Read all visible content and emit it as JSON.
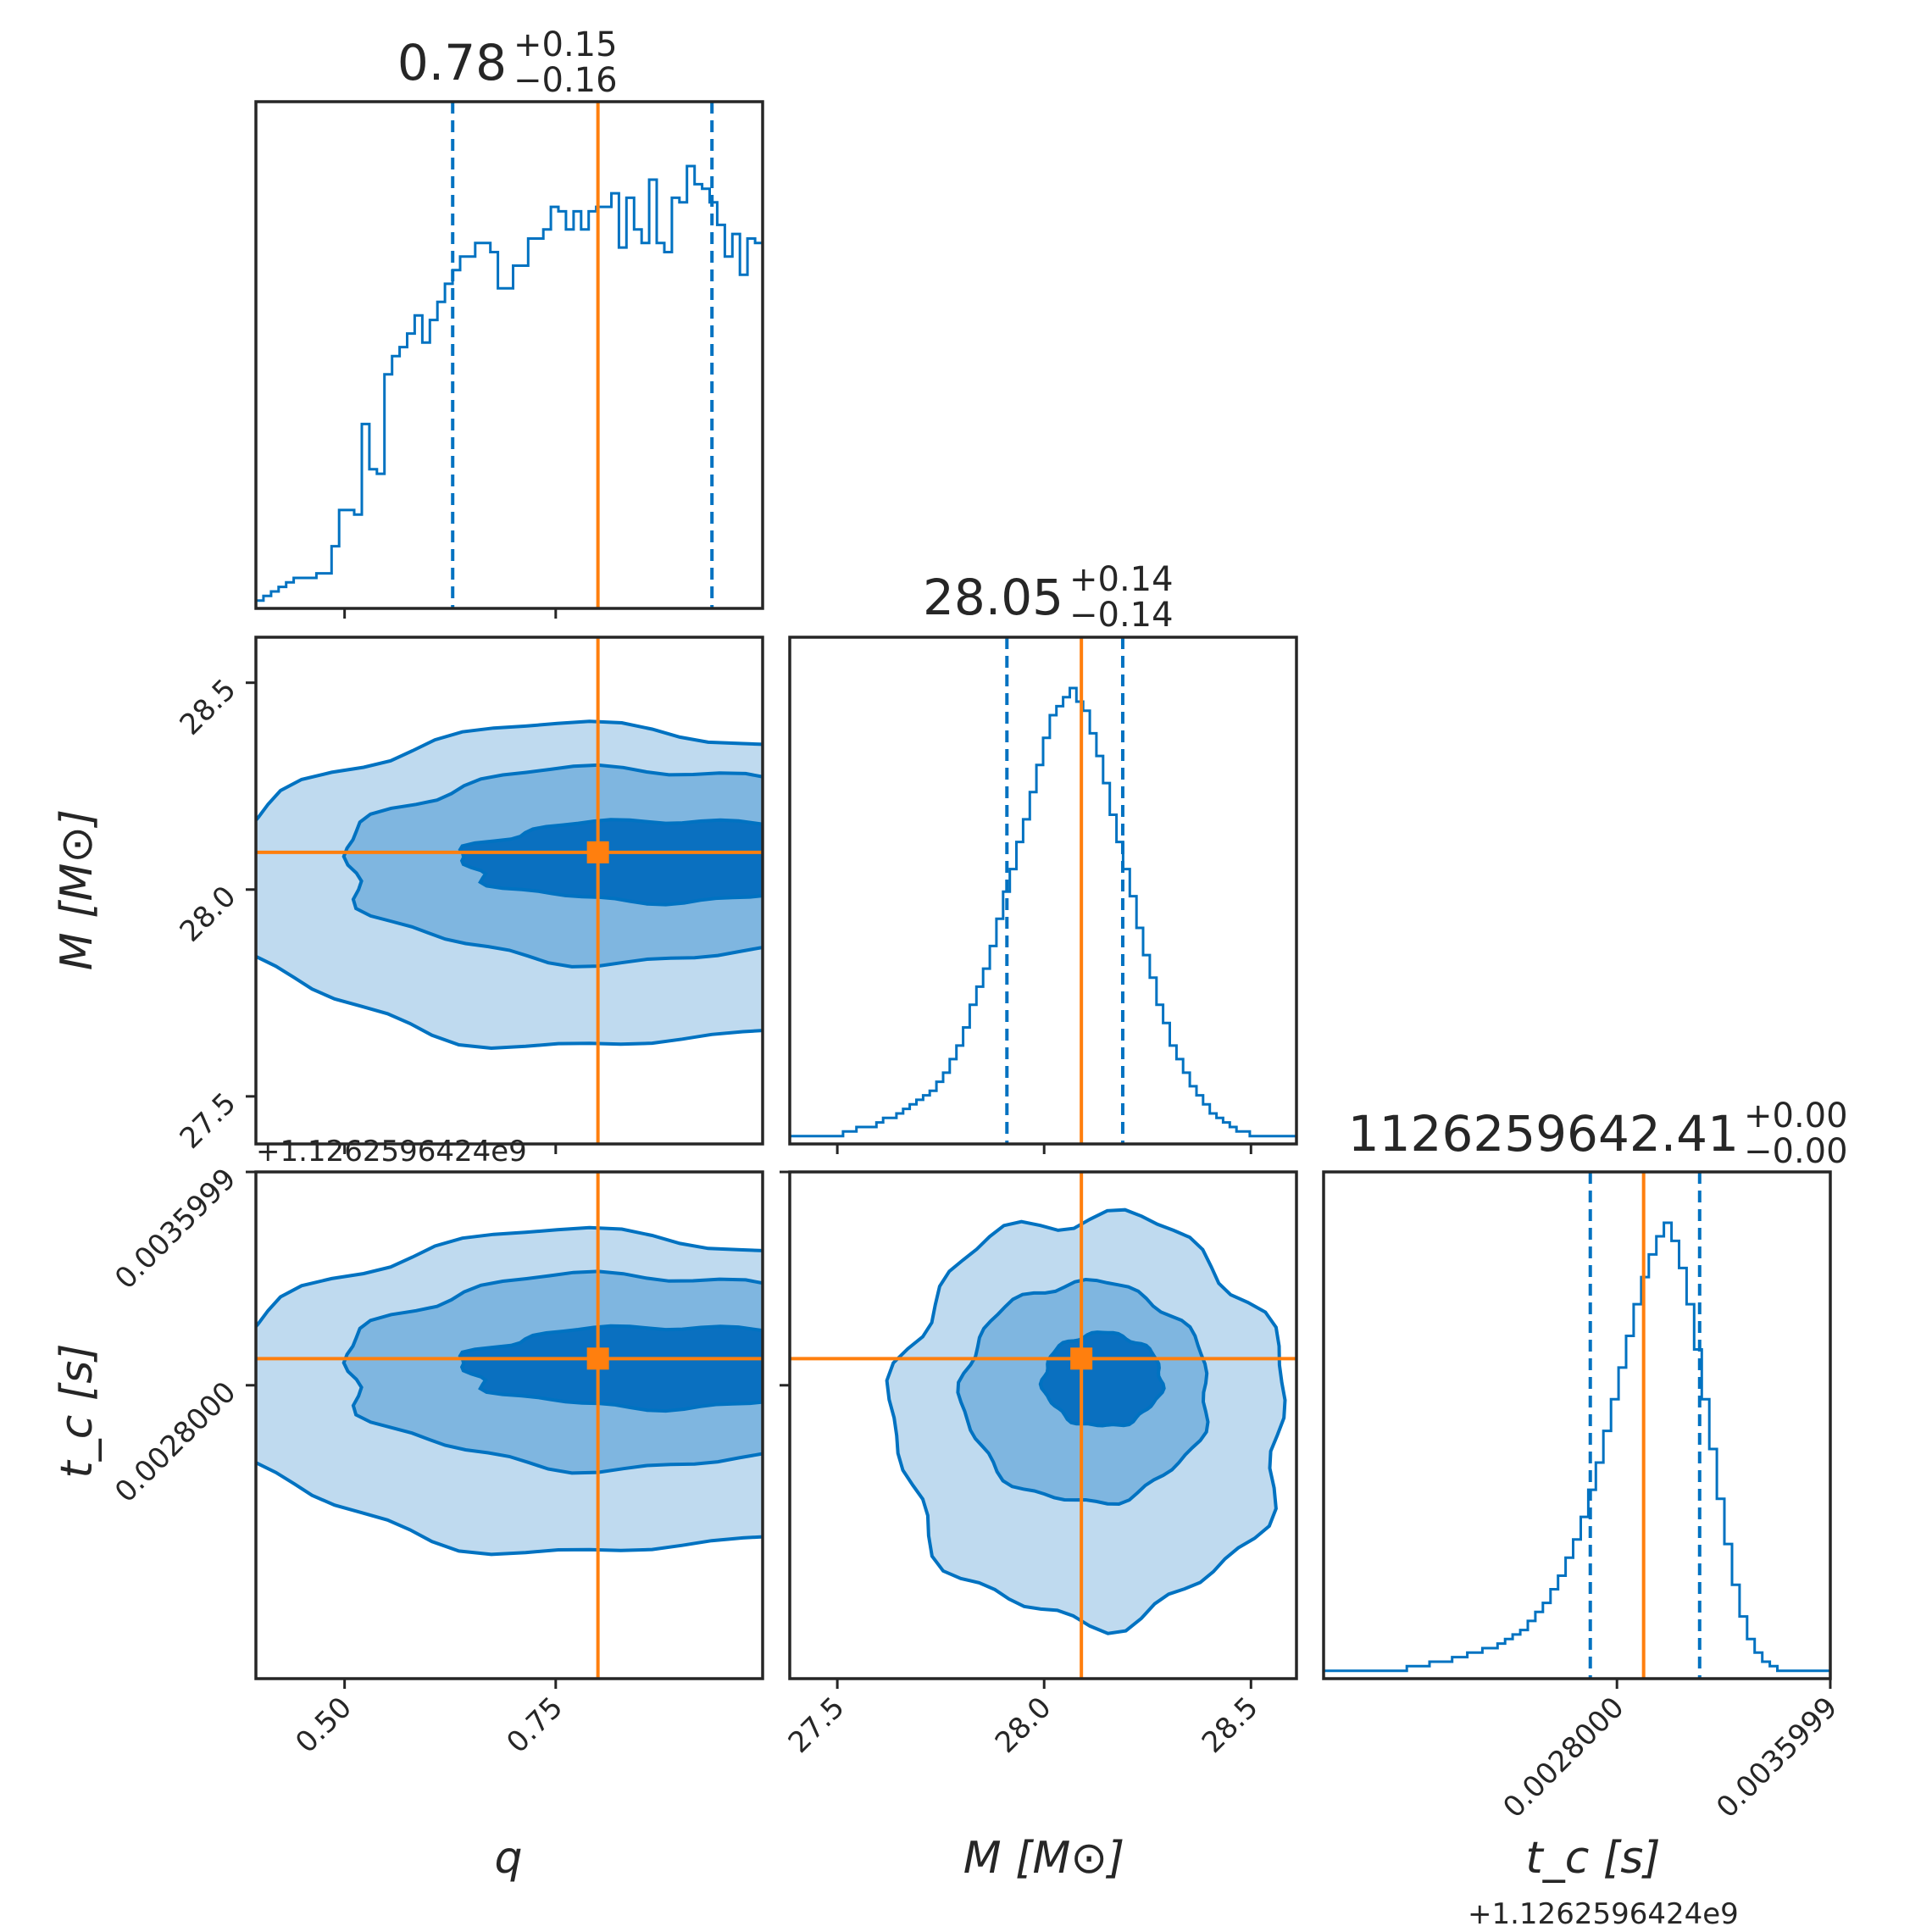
{
  "chart_data": {
    "type": "corner",
    "colors": {
      "posterior": "#0072c1",
      "truth": "#ff7f0e",
      "contour_fill_light": "#bfdaef",
      "contour_fill_mid": "#7fb6e0",
      "contour_fill_dark": "#0a70c0",
      "axis": "#262626"
    },
    "parameters": [
      {
        "key": "q",
        "label": "q",
        "title": "0.78",
        "title_plus": "+0.15",
        "title_minus": "−0.16",
        "range": [
          0.395,
          0.995
        ],
        "truth": 0.8,
        "quantiles": [
          0.628,
          0.935
        ],
        "ticks": [
          0.5,
          0.75
        ],
        "tick_labels": [
          "0.50",
          "0.75"
        ]
      },
      {
        "key": "M",
        "label": "M [M⊙]",
        "title": "28.05",
        "title_plus": "+0.14",
        "title_minus": "−0.14",
        "range": [
          27.385,
          28.61
        ],
        "truth": 28.09,
        "quantiles": [
          27.91,
          28.19
        ],
        "ticks": [
          27.5,
          28.0,
          28.5
        ],
        "tick_labels": [
          "27.5",
          "28.0",
          "28.5"
        ]
      },
      {
        "key": "tc",
        "label": "t_c [s]",
        "title": "1126259642.41",
        "title_plus": "+0.00",
        "title_minus": "−0.00",
        "offset_text": "+1.1262596424e9",
        "range": [
          0.0017,
          0.0036
        ],
        "truth": 0.0029,
        "quantiles": [
          0.0027,
          0.00311
        ],
        "ticks": [
          0.0028,
          0.0035999
        ],
        "tick_labels": [
          "0.0028000",
          "0.0035999"
        ]
      }
    ],
    "histograms": {
      "q": {
        "edges_start": 0.395,
        "edges_end": 0.995,
        "counts": [
          0.01,
          0.02,
          0.03,
          0.04,
          0.05,
          0.06,
          0.06,
          0.06,
          0.07,
          0.07,
          0.13,
          0.21,
          0.21,
          0.2,
          0.4,
          0.3,
          0.29,
          0.51,
          0.55,
          0.57,
          0.6,
          0.64,
          0.58,
          0.63,
          0.67,
          0.71,
          0.74,
          0.77,
          0.77,
          0.8,
          0.8,
          0.78,
          0.7,
          0.7,
          0.75,
          0.75,
          0.81,
          0.81,
          0.83,
          0.88,
          0.87,
          0.83,
          0.87,
          0.83,
          0.87,
          0.88,
          0.88,
          0.91,
          0.79,
          0.9,
          0.83,
          0.8,
          0.94,
          0.8,
          0.78,
          0.9,
          0.89,
          0.97,
          0.93,
          0.92,
          0.89,
          0.84,
          0.77,
          0.82,
          0.73,
          0.81,
          0.8
        ]
      },
      "M": {
        "edges_start": 27.385,
        "edges_end": 28.61,
        "counts": [
          0.01,
          0.01,
          0.01,
          0.01,
          0.01,
          0.01,
          0.01,
          0.01,
          0.02,
          0.02,
          0.03,
          0.03,
          0.03,
          0.04,
          0.05,
          0.05,
          0.06,
          0.07,
          0.08,
          0.09,
          0.1,
          0.11,
          0.13,
          0.15,
          0.18,
          0.21,
          0.25,
          0.3,
          0.34,
          0.38,
          0.43,
          0.49,
          0.55,
          0.6,
          0.66,
          0.71,
          0.77,
          0.83,
          0.89,
          0.94,
          0.96,
          0.98,
          1.0,
          0.97,
          0.95,
          0.9,
          0.85,
          0.79,
          0.72,
          0.66,
          0.6,
          0.54,
          0.47,
          0.41,
          0.36,
          0.3,
          0.26,
          0.21,
          0.18,
          0.15,
          0.12,
          0.1,
          0.08,
          0.06,
          0.05,
          0.04,
          0.03,
          0.02,
          0.02,
          0.01,
          0.01,
          0.01,
          0.01,
          0.01,
          0.01,
          0.01
        ]
      },
      "tc": {
        "edges_start": 0.0017,
        "edges_end": 0.0036,
        "counts": [
          0.01,
          0.01,
          0.01,
          0.01,
          0.01,
          0.01,
          0.01,
          0.01,
          0.01,
          0.01,
          0.01,
          0.02,
          0.02,
          0.02,
          0.03,
          0.03,
          0.03,
          0.04,
          0.04,
          0.05,
          0.05,
          0.06,
          0.06,
          0.07,
          0.08,
          0.09,
          0.1,
          0.12,
          0.14,
          0.16,
          0.19,
          0.22,
          0.26,
          0.3,
          0.35,
          0.41,
          0.47,
          0.54,
          0.61,
          0.68,
          0.75,
          0.82,
          0.88,
          0.93,
          0.97,
          1.0,
          0.96,
          0.9,
          0.82,
          0.72,
          0.61,
          0.5,
          0.39,
          0.29,
          0.2,
          0.13,
          0.08,
          0.05,
          0.03,
          0.02,
          0.01,
          0.01,
          0.01,
          0.01,
          0.01,
          0.01,
          0.01
        ]
      }
    }
  }
}
